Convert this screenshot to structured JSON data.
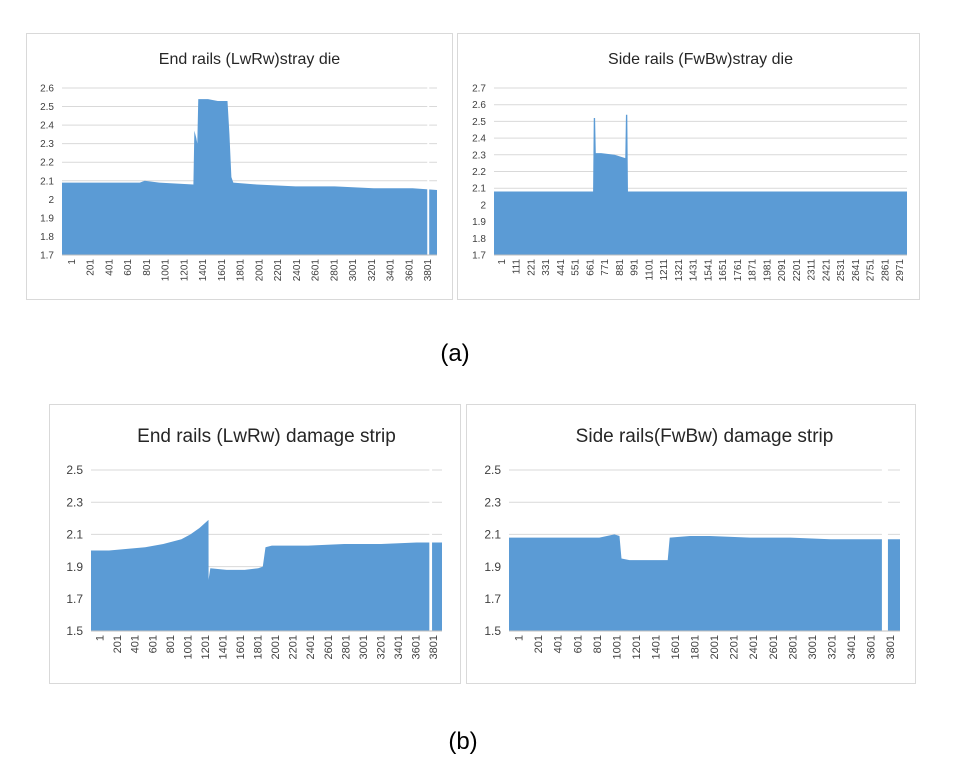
{
  "colors": {
    "fill": "#5b9bd5",
    "grid": "#d9d9d9",
    "axis_text": "#404040",
    "title": "#262626"
  },
  "captions": {
    "a": "(a)",
    "b": "(b)"
  },
  "chart_data": [
    {
      "type": "area",
      "title": "End rails (LwRw)stray die",
      "ylim": [
        1.7,
        2.6
      ],
      "yticks": [
        "1.7",
        "1.8",
        "1.9",
        "2",
        "2.1",
        "2.2",
        "2.3",
        "2.4",
        "2.5",
        "2.6"
      ],
      "x_tick_labels": [
        "1",
        "201",
        "401",
        "601",
        "801",
        "1001",
        "1201",
        "1401",
        "1601",
        "1801",
        "2001",
        "2201",
        "2401",
        "2601",
        "2801",
        "3001",
        "3201",
        "3401",
        "3601",
        "3801"
      ],
      "grid": true,
      "legend": "none",
      "xmax": 3851,
      "gaps": [
        [
          3751,
          3771
        ]
      ],
      "points": [
        [
          1,
          2.09
        ],
        [
          800,
          2.09
        ],
        [
          850,
          2.1
        ],
        [
          1000,
          2.09
        ],
        [
          1350,
          2.08
        ],
        [
          1360,
          2.37
        ],
        [
          1380,
          2.33
        ],
        [
          1390,
          2.3
        ],
        [
          1400,
          2.54
        ],
        [
          1500,
          2.54
        ],
        [
          1600,
          2.53
        ],
        [
          1700,
          2.53
        ],
        [
          1720,
          2.35
        ],
        [
          1740,
          2.12
        ],
        [
          1760,
          2.09
        ],
        [
          2000,
          2.08
        ],
        [
          2400,
          2.07
        ],
        [
          2800,
          2.07
        ],
        [
          3200,
          2.06
        ],
        [
          3600,
          2.06
        ],
        [
          3851,
          2.05
        ]
      ]
    },
    {
      "type": "area",
      "title": "Side rails (FwBw)stray die",
      "ylim": [
        1.7,
        2.7
      ],
      "yticks": [
        "1.7",
        "1.8",
        "1.9",
        "2",
        "2.1",
        "2.2",
        "2.3",
        "2.4",
        "2.5",
        "2.6",
        "2.7"
      ],
      "x_tick_labels": [
        "1",
        "111",
        "221",
        "331",
        "441",
        "551",
        "661",
        "771",
        "881",
        "991",
        "1101",
        "1211",
        "1321",
        "1431",
        "1541",
        "1651",
        "1761",
        "1871",
        "1981",
        "2091",
        "2201",
        "2311",
        "2421",
        "2531",
        "2641",
        "2751",
        "2861",
        "2971"
      ],
      "grid": true,
      "legend": "none",
      "xmax": 3081,
      "gaps": [],
      "points": [
        [
          1,
          2.08
        ],
        [
          740,
          2.08
        ],
        [
          745,
          2.52
        ],
        [
          755,
          2.52
        ],
        [
          760,
          2.31
        ],
        [
          800,
          2.31
        ],
        [
          900,
          2.3
        ],
        [
          980,
          2.28
        ],
        [
          985,
          2.54
        ],
        [
          995,
          2.54
        ],
        [
          1000,
          2.08
        ],
        [
          1500,
          2.08
        ],
        [
          2000,
          2.08
        ],
        [
          2500,
          2.08
        ],
        [
          3081,
          2.08
        ]
      ]
    },
    {
      "type": "area",
      "title": "End rails (LwRw) damage strip",
      "ylim": [
        1.5,
        2.5
      ],
      "yticks": [
        "1.5",
        "1.7",
        "1.9",
        "2.1",
        "2.3",
        "2.5"
      ],
      "x_tick_labels": [
        "1",
        "201",
        "401",
        "601",
        "801",
        "1001",
        "1201",
        "1401",
        "1601",
        "1801",
        "2001",
        "2201",
        "2401",
        "2601",
        "2801",
        "3001",
        "3201",
        "3401",
        "3601",
        "3801"
      ],
      "grid": true,
      "legend": "none",
      "xmax": 3881,
      "gaps": [
        [
          3741,
          3771
        ]
      ],
      "points": [
        [
          1,
          2.0
        ],
        [
          200,
          2.0
        ],
        [
          400,
          2.01
        ],
        [
          600,
          2.02
        ],
        [
          800,
          2.04
        ],
        [
          1000,
          2.07
        ],
        [
          1100,
          2.1
        ],
        [
          1200,
          2.14
        ],
        [
          1300,
          2.19
        ],
        [
          1301,
          1.82
        ],
        [
          1320,
          1.89
        ],
        [
          1500,
          1.88
        ],
        [
          1700,
          1.88
        ],
        [
          1850,
          1.89
        ],
        [
          1900,
          1.9
        ],
        [
          1930,
          2.02
        ],
        [
          2000,
          2.03
        ],
        [
          2400,
          2.03
        ],
        [
          2800,
          2.04
        ],
        [
          3200,
          2.04
        ],
        [
          3600,
          2.05
        ],
        [
          3881,
          2.05
        ]
      ]
    },
    {
      "type": "area",
      "title": "Side rails(FwBw) damage strip",
      "ylim": [
        1.5,
        2.5
      ],
      "yticks": [
        "1.5",
        "1.7",
        "1.9",
        "2.1",
        "2.3",
        "2.5"
      ],
      "x_tick_labels": [
        "1",
        "201",
        "401",
        "601",
        "801",
        "1001",
        "1201",
        "1401",
        "1601",
        "1801",
        "2001",
        "2201",
        "2401",
        "2601",
        "2801",
        "3001",
        "3201",
        "3401",
        "3601",
        "3801"
      ],
      "grid": true,
      "legend": "none",
      "xmax": 3891,
      "gaps": [
        [
          3711,
          3771
        ]
      ],
      "points": [
        [
          1,
          2.08
        ],
        [
          500,
          2.08
        ],
        [
          900,
          2.08
        ],
        [
          1050,
          2.1
        ],
        [
          1100,
          2.09
        ],
        [
          1120,
          1.95
        ],
        [
          1200,
          1.94
        ],
        [
          1400,
          1.94
        ],
        [
          1580,
          1.94
        ],
        [
          1600,
          2.08
        ],
        [
          1800,
          2.09
        ],
        [
          2000,
          2.09
        ],
        [
          2400,
          2.08
        ],
        [
          2800,
          2.08
        ],
        [
          3200,
          2.07
        ],
        [
          3600,
          2.07
        ],
        [
          3891,
          2.07
        ]
      ]
    }
  ]
}
